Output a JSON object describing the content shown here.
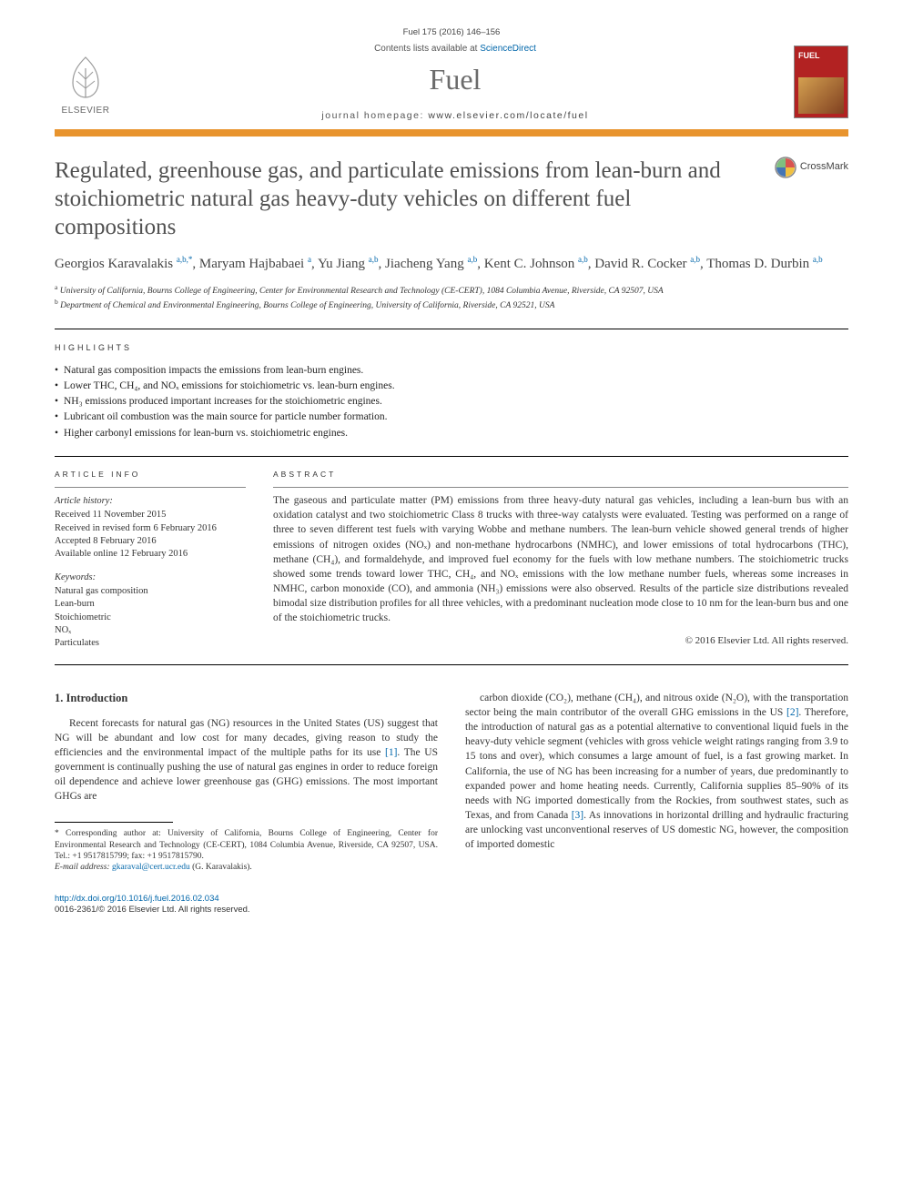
{
  "header": {
    "article_ref": "Fuel 175 (2016) 146–156",
    "contents_prefix": "Contents lists available at ",
    "contents_link": "ScienceDirect",
    "journal_name": "Fuel",
    "homepage_prefix": "journal homepage: ",
    "homepage_url": "www.elsevier.com/locate/fuel",
    "publisher_name": "ELSEVIER",
    "cover_label": "FUEL",
    "orange_bar_color": "#e8942e"
  },
  "title": "Regulated, greenhouse gas, and particulate emissions from lean-burn and stoichiometric natural gas heavy-duty vehicles on different fuel compositions",
  "crossmark_label": "CrossMark",
  "authors": [
    {
      "name": "Georgios Karavalakis",
      "sup": "a,b,*"
    },
    {
      "name": "Maryam Hajbabaei",
      "sup": "a"
    },
    {
      "name": "Yu Jiang",
      "sup": "a,b"
    },
    {
      "name": "Jiacheng Yang",
      "sup": "a,b"
    },
    {
      "name": "Kent C. Johnson",
      "sup": "a,b"
    },
    {
      "name": "David R. Cocker",
      "sup": "a,b"
    },
    {
      "name": "Thomas D. Durbin",
      "sup": "a,b"
    }
  ],
  "affiliations": {
    "a": "University of California, Bourns College of Engineering, Center for Environmental Research and Technology (CE-CERT), 1084 Columbia Avenue, Riverside, CA 92507, USA",
    "b": "Department of Chemical and Environmental Engineering, Bourns College of Engineering, University of California, Riverside, CA 92521, USA"
  },
  "highlights_heading": "HIGHLIGHTS",
  "highlights": [
    "Natural gas composition impacts the emissions from lean-burn engines.",
    "Lower THC, CH₄, and NOₓ emissions for stoichiometric vs. lean-burn engines.",
    "NH₃ emissions produced important increases for the stoichiometric engines.",
    "Lubricant oil combustion was the main source for particle number formation.",
    "Higher carbonyl emissions for lean-burn vs. stoichiometric engines."
  ],
  "article_info": {
    "heading": "ARTICLE INFO",
    "history_heading": "Article history:",
    "history": [
      "Received 11 November 2015",
      "Received in revised form 6 February 2016",
      "Accepted 8 February 2016",
      "Available online 12 February 2016"
    ],
    "keywords_heading": "Keywords:",
    "keywords": [
      "Natural gas composition",
      "Lean-burn",
      "Stoichiometric",
      "NOₓ",
      "Particulates"
    ]
  },
  "abstract": {
    "heading": "ABSTRACT",
    "text": "The gaseous and particulate matter (PM) emissions from three heavy-duty natural gas vehicles, including a lean-burn bus with an oxidation catalyst and two stoichiometric Class 8 trucks with three-way catalysts were evaluated. Testing was performed on a range of three to seven different test fuels with varying Wobbe and methane numbers. The lean-burn vehicle showed general trends of higher emissions of nitrogen oxides (NOₓ) and non-methane hydrocarbons (NMHC), and lower emissions of total hydrocarbons (THC), methane (CH₄), and formaldehyde, and improved fuel economy for the fuels with low methane numbers. The stoichiometric trucks showed some trends toward lower THC, CH₄, and NOₓ emissions with the low methane number fuels, whereas some increases in NMHC, carbon monoxide (CO), and ammonia (NH₃) emissions were also observed. Results of the particle size distributions revealed bimodal size distribution profiles for all three vehicles, with a predominant nucleation mode close to 10 nm for the lean-burn bus and one of the stoichiometric trucks.",
    "copyright": "© 2016 Elsevier Ltd. All rights reserved."
  },
  "body": {
    "section_heading": "1. Introduction",
    "col1": "Recent forecasts for natural gas (NG) resources in the United States (US) suggest that NG will be abundant and low cost for many decades, giving reason to study the efficiencies and the environmental impact of the multiple paths for its use [1]. The US government is continually pushing the use of natural gas engines in order to reduce foreign oil dependence and achieve lower greenhouse gas (GHG) emissions. The most important GHGs are",
    "col2": "carbon dioxide (CO₂), methane (CH₄), and nitrous oxide (N₂O), with the transportation sector being the main contributor of the overall GHG emissions in the US [2]. Therefore, the introduction of natural gas as a potential alternative to conventional liquid fuels in the heavy-duty vehicle segment (vehicles with gross vehicle weight ratings ranging from 3.9 to 15 tons and over), which consumes a large amount of fuel, is a fast growing market. In California, the use of NG has been increasing for a number of years, due predominantly to expanded power and home heating needs. Currently, California supplies 85–90% of its needs with NG imported domestically from the Rockies, from southwest states, such as Texas, and from Canada [3]. As innovations in horizontal drilling and hydraulic fracturing are unlocking vast unconventional reserves of US domestic NG, however, the composition of imported domestic"
  },
  "footnotes": {
    "corr_label": "* Corresponding author at: University of California, Bourns College of Engineering, Center for Environmental Research and Technology (CE-CERT), 1084 Columbia Avenue, Riverside, CA 92507, USA. Tel.: +1 9517815799; fax: +1 9517815790.",
    "email_label": "E-mail address:",
    "email": "gkaraval@cert.ucr.edu",
    "email_owner": "(G. Karavalakis)."
  },
  "footer": {
    "doi_url": "http://dx.doi.org/10.1016/j.fuel.2016.02.034",
    "issn_line": "0016-2361/© 2016 Elsevier Ltd. All rights reserved."
  }
}
